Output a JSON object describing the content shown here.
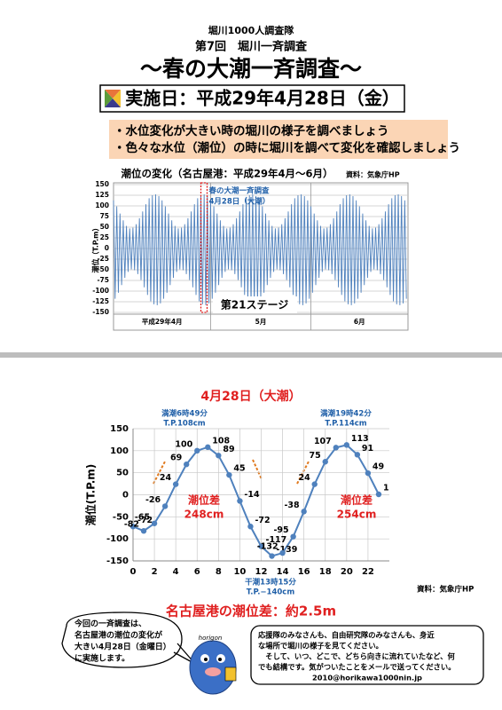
{
  "header": {
    "org": "堀川1000人調査隊",
    "event": "第7回　堀川一斉調査",
    "title": "～春の大潮一斉調査～",
    "date": "実施日：平成29年4月28日（金）"
  },
  "goals": [
    "・水位変化が大きい時の堀川の様子を調べましょう",
    "・色々な水位（潮位）の時に堀川を調べて変化を確認しましょう"
  ],
  "chart_data": [
    {
      "type": "line",
      "title": "潮位の変化（名古屋港：平成29年4月～6月）",
      "source": "資料：気象庁HP",
      "ylabel": "潮位（T.P.m）",
      "color": "#4f81bd",
      "ylim": [
        -150,
        150
      ],
      "yticks": [
        -150,
        -125,
        -100,
        -75,
        -50,
        -25,
        0,
        25,
        50,
        75,
        100,
        125,
        150
      ],
      "grid": true,
      "xlim": [
        0,
        91
      ],
      "xticks": [
        {
          "value": 15,
          "label": "平成29年4月"
        },
        {
          "value": 45.5,
          "label": "5月"
        },
        {
          "value": 76,
          "label": "6月"
        }
      ],
      "xgrid": [
        30,
        61
      ],
      "highlight_x": 27,
      "annotations": [
        "春の大潮一斉調査",
        "4月28日（大潮）"
      ],
      "stage": "第21ステージ",
      "x": [
        0,
        0.5,
        1,
        1.5,
        2,
        2.5,
        3,
        3.5,
        4,
        4.5,
        5,
        5.5,
        6,
        6.5,
        7,
        7.5,
        8,
        8.5,
        9,
        9.5,
        10,
        10.5,
        11,
        11.5,
        12,
        12.5,
        13,
        13.5,
        14,
        14.5,
        15,
        15.5,
        16,
        16.5,
        17,
        17.5,
        18,
        18.5,
        19,
        19.5,
        20,
        20.5,
        21,
        21.5,
        22,
        22.5,
        23,
        23.5,
        24,
        24.5,
        25,
        25.5,
        26,
        26.5,
        27,
        27.5,
        28,
        28.5,
        29,
        29.5,
        30,
        30.5,
        31,
        31.5,
        32,
        32.5,
        33,
        33.5,
        34,
        34.5,
        35,
        35.5,
        36,
        36.5,
        37,
        37.5,
        38,
        38.5,
        39,
        39.5,
        40,
        40.5,
        41,
        41.5,
        42,
        42.5,
        43,
        43.5,
        44,
        44.5,
        45,
        45.5,
        46,
        46.5,
        47,
        47.5,
        48,
        48.5,
        49,
        49.5,
        50,
        50.5,
        51,
        51.5,
        52,
        52.5,
        53,
        53.5,
        54,
        54.5,
        55,
        55.5,
        56,
        56.5,
        57,
        57.5,
        58,
        58.5,
        59,
        59.5,
        60,
        60.5,
        61,
        61.5,
        62,
        62.5,
        63,
        63.5,
        64,
        64.5,
        65,
        65.5,
        66,
        66.5,
        67,
        67.5,
        68,
        68.5,
        69,
        69.5,
        70,
        70.5,
        71,
        71.5,
        72,
        72.5,
        73,
        73.5,
        74,
        74.5,
        75,
        75.5,
        76,
        76.5,
        77,
        77.5,
        78,
        78.5,
        79,
        79.5,
        80,
        80.5,
        81,
        81.5,
        82,
        82.5,
        83,
        83.5,
        84,
        84.5,
        85,
        85.5,
        86,
        86.5,
        87,
        87.5,
        88,
        88.5,
        89,
        89.5,
        90,
        90.5
      ],
      "values": [
        113,
        -118,
        99,
        -104,
        82,
        -86,
        66,
        -69,
        53,
        -55,
        47,
        -49,
        49,
        -51,
        57,
        -60,
        71,
        -74,
        87,
        -91,
        104,
        -109,
        118,
        -124,
        125,
        -131,
        127,
        -133,
        123,
        -129,
        113,
        -118,
        99,
        -104,
        82,
        -86,
        66,
        -69,
        53,
        -55,
        47,
        -49,
        49,
        -51,
        57,
        -60,
        71,
        -74,
        87,
        -91,
        104,
        -109,
        118,
        -124,
        125,
        -131,
        127,
        -133,
        123,
        -129,
        113,
        -118,
        99,
        -104,
        82,
        -86,
        66,
        -69,
        53,
        -55,
        47,
        -49,
        49,
        -51,
        57,
        -60,
        71,
        -74,
        87,
        -91,
        104,
        -109,
        118,
        -124,
        125,
        -131,
        127,
        -133,
        123,
        -129,
        113,
        -118,
        99,
        -104,
        82,
        -86,
        66,
        -69,
        53,
        -55,
        47,
        -49,
        49,
        -51,
        57,
        -60,
        71,
        -74,
        87,
        -91,
        104,
        -109,
        118,
        -124,
        125,
        -131,
        127,
        -133,
        123,
        -129,
        113,
        -118,
        99,
        -104,
        82,
        -86,
        66,
        -69,
        53,
        -55,
        47,
        -49,
        49,
        -51,
        57,
        -60,
        71,
        -74,
        87,
        -91,
        104,
        -109,
        118,
        -124,
        125,
        -131,
        127,
        -133,
        123,
        -129,
        113,
        -118,
        99,
        -104,
        82,
        -86,
        66,
        -69,
        53,
        -55,
        47,
        -49,
        49,
        -51,
        57,
        -60,
        71,
        -74,
        87,
        -91,
        104,
        -109,
        118,
        -124,
        125,
        -131,
        127,
        -133,
        123,
        -129,
        113,
        -118
      ]
    },
    {
      "type": "line",
      "title": "4月28日（大潮）",
      "source": "資料：気象庁HP",
      "ylabel": "潮位(T.P.m)",
      "color": "#4f81bd",
      "ylim": [
        -150,
        150
      ],
      "yticks": [
        -150,
        -100,
        -50,
        0,
        50,
        100,
        150
      ],
      "xlim": [
        0,
        24
      ],
      "xticks": [
        0,
        2,
        4,
        6,
        8,
        10,
        12,
        14,
        16,
        18,
        20,
        22
      ],
      "grid": true,
      "x": [
        0,
        1,
        2,
        3,
        4,
        5,
        6,
        7,
        8,
        9,
        10,
        11,
        12,
        13,
        14,
        15,
        16,
        17,
        18,
        19,
        20,
        21,
        22,
        23
      ],
      "values": [
        -72,
        -82,
        -65,
        -26,
        24,
        69,
        100,
        108,
        89,
        45,
        -14,
        -72,
        -117,
        -139,
        -132,
        -95,
        -38,
        24,
        75,
        107,
        113,
        91,
        49,
        1
      ],
      "annotations": [
        "満潮6時49分",
        "T.P.108cm",
        "干潮13時15分",
        "T.P.−140cm",
        "満潮19時42分",
        "T.P.114cm",
        "潮位差",
        "248cm",
        "潮位差",
        "254cm"
      ]
    }
  ],
  "footer": {
    "headline": "名古屋港の潮位差：約2.5m",
    "notice": [
      "今回の一斉調査は、",
      "名古屋港の潮位の変化が",
      "大きい4月28日（金曜日）",
      "に実施します。"
    ],
    "message": [
      "応援隊のみなさんも、自由研究隊のみなさんも、身近",
      "な場所で堀川の様子を見てください。",
      "　そして、いつ、どこで、どちら向きに流れていたなど、何",
      "でも結構です。気がついたことをメールで送ってください。",
      "2010@horikawa1000nin.jp"
    ],
    "mascot": "horigon"
  }
}
